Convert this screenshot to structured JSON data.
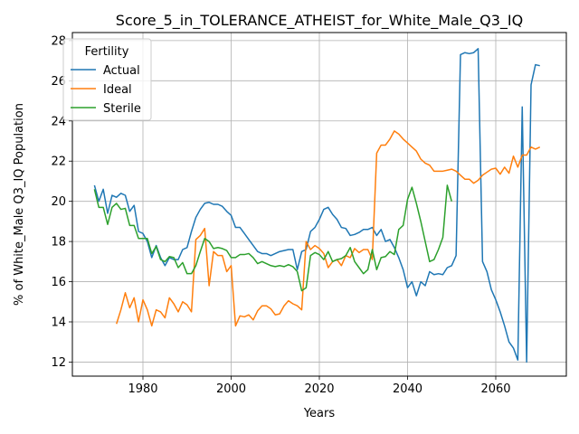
{
  "chart_data": {
    "type": "line",
    "title": "Score_5_in_TOLERANCE_ATHEIST_for_White_Male_Q3_IQ",
    "xlabel": "Years",
    "ylabel": "% of White_Male Q3_IQ Population",
    "xlim": [
      1964,
      2076
    ],
    "ylim": [
      11.3,
      28.4
    ],
    "xticks": [
      1980,
      2000,
      2020,
      2040,
      2060
    ],
    "yticks": [
      12,
      14,
      16,
      18,
      20,
      22,
      24,
      26,
      28
    ],
    "grid": true,
    "legend": {
      "title": "Fertility",
      "placement": "top-left"
    },
    "series": [
      {
        "name": "Actual",
        "color": "#1f77b4",
        "points": [
          [
            1969,
            20.8
          ],
          [
            1970,
            20.0
          ],
          [
            1971,
            20.6
          ],
          [
            1972,
            19.4
          ],
          [
            1973,
            20.3
          ],
          [
            1974,
            20.2
          ],
          [
            1975,
            20.4
          ],
          [
            1976,
            20.3
          ],
          [
            1977,
            19.5
          ],
          [
            1978,
            19.8
          ],
          [
            1979,
            18.5
          ],
          [
            1980,
            18.4
          ],
          [
            1981,
            18.0
          ],
          [
            1982,
            17.2
          ],
          [
            1983,
            17.8
          ],
          [
            1984,
            17.2
          ],
          [
            1985,
            16.8
          ],
          [
            1986,
            17.2
          ],
          [
            1987,
            17.1
          ],
          [
            1988,
            17.1
          ],
          [
            1989,
            17.6
          ],
          [
            1990,
            17.7
          ],
          [
            1991,
            18.5
          ],
          [
            1992,
            19.2
          ],
          [
            1993,
            19.6
          ],
          [
            1994,
            19.9
          ],
          [
            1995,
            19.95
          ],
          [
            1996,
            19.85
          ],
          [
            1997,
            19.85
          ],
          [
            1998,
            19.75
          ],
          [
            1999,
            19.5
          ],
          [
            2000,
            19.3
          ],
          [
            2001,
            18.7
          ],
          [
            2002,
            18.7
          ],
          [
            2003,
            18.4
          ],
          [
            2004,
            18.1
          ],
          [
            2005,
            17.8
          ],
          [
            2006,
            17.5
          ],
          [
            2007,
            17.4
          ],
          [
            2008,
            17.4
          ],
          [
            2009,
            17.3
          ],
          [
            2010,
            17.4
          ],
          [
            2011,
            17.5
          ],
          [
            2012,
            17.55
          ],
          [
            2013,
            17.6
          ],
          [
            2014,
            17.6
          ],
          [
            2015,
            16.6
          ],
          [
            2016,
            17.5
          ],
          [
            2017,
            17.6
          ],
          [
            2018,
            18.5
          ],
          [
            2019,
            18.7
          ],
          [
            2020,
            19.1
          ],
          [
            2021,
            19.6
          ],
          [
            2022,
            19.7
          ],
          [
            2023,
            19.35
          ],
          [
            2024,
            19.1
          ],
          [
            2025,
            18.7
          ],
          [
            2026,
            18.65
          ],
          [
            2027,
            18.3
          ],
          [
            2028,
            18.35
          ],
          [
            2029,
            18.45
          ],
          [
            2030,
            18.6
          ],
          [
            2031,
            18.6
          ],
          [
            2032,
            18.7
          ],
          [
            2033,
            18.3
          ],
          [
            2034,
            18.6
          ],
          [
            2035,
            18.0
          ],
          [
            2036,
            18.1
          ],
          [
            2037,
            17.7
          ],
          [
            2038,
            17.2
          ],
          [
            2039,
            16.6
          ],
          [
            2040,
            15.7
          ],
          [
            2041,
            16.0
          ],
          [
            2042,
            15.3
          ],
          [
            2043,
            16.0
          ],
          [
            2044,
            15.8
          ],
          [
            2045,
            16.5
          ],
          [
            2046,
            16.35
          ],
          [
            2047,
            16.4
          ],
          [
            2048,
            16.35
          ],
          [
            2049,
            16.7
          ],
          [
            2050,
            16.8
          ],
          [
            2051,
            17.3
          ],
          [
            2052,
            27.3
          ],
          [
            2053,
            27.4
          ],
          [
            2054,
            27.35
          ],
          [
            2055,
            27.4
          ],
          [
            2056,
            27.6
          ],
          [
            2057,
            17.0
          ],
          [
            2058,
            16.5
          ],
          [
            2059,
            15.6
          ],
          [
            2060,
            15.1
          ],
          [
            2061,
            14.5
          ],
          [
            2062,
            13.8
          ],
          [
            2063,
            13.0
          ],
          [
            2064,
            12.7
          ],
          [
            2065,
            12.1
          ],
          [
            2066,
            24.7
          ],
          [
            2067,
            12.0
          ],
          [
            2068,
            25.8
          ],
          [
            2069,
            26.8
          ],
          [
            2070,
            26.75
          ]
        ]
      },
      {
        "name": "Ideal",
        "color": "#ff7f0e",
        "points": [
          [
            1974,
            13.9
          ],
          [
            1975,
            14.6
          ],
          [
            1976,
            15.45
          ],
          [
            1977,
            14.7
          ],
          [
            1978,
            15.2
          ],
          [
            1979,
            14.0
          ],
          [
            1980,
            15.1
          ],
          [
            1981,
            14.6
          ],
          [
            1982,
            13.8
          ],
          [
            1983,
            14.6
          ],
          [
            1984,
            14.5
          ],
          [
            1985,
            14.2
          ],
          [
            1986,
            15.2
          ],
          [
            1987,
            14.9
          ],
          [
            1988,
            14.5
          ],
          [
            1989,
            15.0
          ],
          [
            1990,
            14.85
          ],
          [
            1991,
            14.5
          ],
          [
            1992,
            18.1
          ],
          [
            1993,
            18.3
          ],
          [
            1994,
            18.65
          ],
          [
            1995,
            15.8
          ],
          [
            1996,
            17.5
          ],
          [
            1997,
            17.3
          ],
          [
            1998,
            17.3
          ],
          [
            1999,
            16.5
          ],
          [
            2000,
            16.8
          ],
          [
            2001,
            13.8
          ],
          [
            2002,
            14.3
          ],
          [
            2003,
            14.25
          ],
          [
            2004,
            14.35
          ],
          [
            2005,
            14.1
          ],
          [
            2006,
            14.55
          ],
          [
            2007,
            14.8
          ],
          [
            2008,
            14.8
          ],
          [
            2009,
            14.65
          ],
          [
            2010,
            14.35
          ],
          [
            2011,
            14.4
          ],
          [
            2012,
            14.8
          ],
          [
            2013,
            15.05
          ],
          [
            2014,
            14.9
          ],
          [
            2015,
            14.8
          ],
          [
            2016,
            14.6
          ],
          [
            2017,
            18.0
          ],
          [
            2018,
            17.6
          ],
          [
            2019,
            17.8
          ],
          [
            2020,
            17.65
          ],
          [
            2021,
            17.4
          ],
          [
            2022,
            16.7
          ],
          [
            2023,
            17.0
          ],
          [
            2024,
            17.1
          ],
          [
            2025,
            16.8
          ],
          [
            2026,
            17.3
          ],
          [
            2027,
            17.2
          ],
          [
            2028,
            17.65
          ],
          [
            2029,
            17.45
          ],
          [
            2030,
            17.6
          ],
          [
            2031,
            17.6
          ],
          [
            2032,
            17.1
          ],
          [
            2033,
            22.4
          ],
          [
            2034,
            22.8
          ],
          [
            2035,
            22.8
          ],
          [
            2036,
            23.1
          ],
          [
            2037,
            23.5
          ],
          [
            2038,
            23.35
          ],
          [
            2039,
            23.1
          ],
          [
            2040,
            22.9
          ],
          [
            2041,
            22.7
          ],
          [
            2042,
            22.5
          ],
          [
            2043,
            22.1
          ],
          [
            2044,
            21.9
          ],
          [
            2045,
            21.8
          ],
          [
            2046,
            21.5
          ],
          [
            2047,
            21.5
          ],
          [
            2048,
            21.5
          ],
          [
            2049,
            21.55
          ],
          [
            2050,
            21.6
          ],
          [
            2051,
            21.5
          ],
          [
            2052,
            21.3
          ],
          [
            2053,
            21.1
          ],
          [
            2054,
            21.1
          ],
          [
            2055,
            20.9
          ],
          [
            2056,
            21.05
          ],
          [
            2057,
            21.3
          ],
          [
            2058,
            21.45
          ],
          [
            2059,
            21.6
          ],
          [
            2060,
            21.65
          ],
          [
            2061,
            21.35
          ],
          [
            2062,
            21.7
          ],
          [
            2063,
            21.4
          ],
          [
            2064,
            22.25
          ],
          [
            2065,
            21.7
          ],
          [
            2066,
            22.3
          ],
          [
            2067,
            22.3
          ],
          [
            2068,
            22.7
          ],
          [
            2069,
            22.6
          ],
          [
            2070,
            22.7
          ]
        ]
      },
      {
        "name": "Sterile",
        "color": "#2ca02c",
        "points": [
          [
            1969,
            20.6
          ],
          [
            1970,
            19.7
          ],
          [
            1971,
            19.7
          ],
          [
            1972,
            18.85
          ],
          [
            1973,
            19.7
          ],
          [
            1974,
            19.9
          ],
          [
            1975,
            19.6
          ],
          [
            1976,
            19.65
          ],
          [
            1977,
            18.8
          ],
          [
            1978,
            18.8
          ],
          [
            1979,
            18.15
          ],
          [
            1980,
            18.15
          ],
          [
            1981,
            18.15
          ],
          [
            1982,
            17.4
          ],
          [
            1983,
            17.75
          ],
          [
            1984,
            17.1
          ],
          [
            1985,
            17.0
          ],
          [
            1986,
            17.25
          ],
          [
            1987,
            17.2
          ],
          [
            1988,
            16.7
          ],
          [
            1989,
            16.95
          ],
          [
            1990,
            16.4
          ],
          [
            1991,
            16.4
          ],
          [
            1992,
            16.8
          ],
          [
            1993,
            17.5
          ],
          [
            1994,
            18.15
          ],
          [
            1995,
            18.0
          ],
          [
            1996,
            17.65
          ],
          [
            1997,
            17.7
          ],
          [
            1998,
            17.65
          ],
          [
            1999,
            17.55
          ],
          [
            2000,
            17.2
          ],
          [
            2001,
            17.2
          ],
          [
            2002,
            17.35
          ],
          [
            2003,
            17.35
          ],
          [
            2004,
            17.4
          ],
          [
            2005,
            17.2
          ],
          [
            2006,
            16.9
          ],
          [
            2007,
            17.0
          ],
          [
            2008,
            16.9
          ],
          [
            2009,
            16.8
          ],
          [
            2010,
            16.75
          ],
          [
            2011,
            16.8
          ],
          [
            2012,
            16.75
          ],
          [
            2013,
            16.85
          ],
          [
            2014,
            16.75
          ],
          [
            2015,
            16.5
          ],
          [
            2016,
            15.55
          ],
          [
            2017,
            15.7
          ],
          [
            2018,
            17.3
          ],
          [
            2019,
            17.45
          ],
          [
            2020,
            17.35
          ],
          [
            2021,
            17.1
          ],
          [
            2022,
            17.5
          ],
          [
            2023,
            17.0
          ],
          [
            2024,
            17.1
          ],
          [
            2025,
            17.15
          ],
          [
            2026,
            17.3
          ],
          [
            2027,
            17.7
          ],
          [
            2028,
            17.0
          ],
          [
            2029,
            16.7
          ],
          [
            2030,
            16.4
          ],
          [
            2031,
            16.6
          ],
          [
            2032,
            17.6
          ],
          [
            2033,
            16.6
          ],
          [
            2034,
            17.2
          ],
          [
            2035,
            17.25
          ],
          [
            2036,
            17.5
          ],
          [
            2037,
            17.35
          ],
          [
            2038,
            18.6
          ],
          [
            2039,
            18.8
          ],
          [
            2040,
            20.1
          ],
          [
            2041,
            20.7
          ],
          [
            2042,
            19.9
          ],
          [
            2043,
            19.0
          ],
          [
            2044,
            18.0
          ],
          [
            2045,
            17.0
          ],
          [
            2046,
            17.1
          ],
          [
            2047,
            17.6
          ],
          [
            2048,
            18.2
          ],
          [
            2049,
            20.8
          ],
          [
            2050,
            20.0
          ]
        ]
      }
    ]
  }
}
